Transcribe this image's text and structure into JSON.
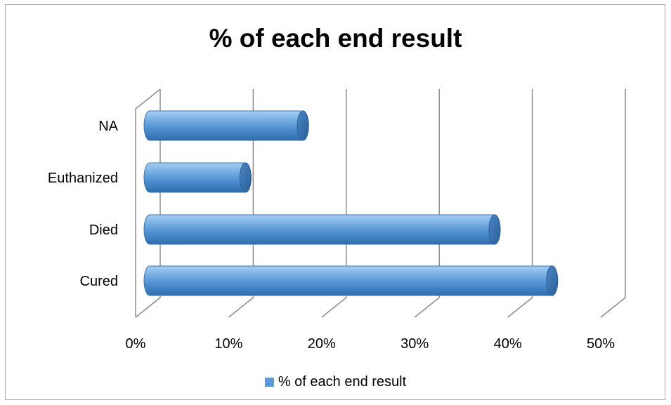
{
  "chart_data": {
    "type": "bar",
    "orientation": "horizontal",
    "style": "3d-cylinder",
    "title": "% of each end result",
    "categories": [
      "Cured",
      "Died",
      "Euthanized",
      "NA"
    ],
    "series": [
      {
        "name": "% of each end result",
        "values": [
          42,
          36,
          10,
          16
        ],
        "color": "#5b9bd5"
      }
    ],
    "xlim": [
      0,
      50
    ],
    "x_ticks": [
      "0%",
      "10%",
      "20%",
      "30%",
      "40%",
      "50%"
    ],
    "grid": true,
    "legend_position": "bottom"
  }
}
